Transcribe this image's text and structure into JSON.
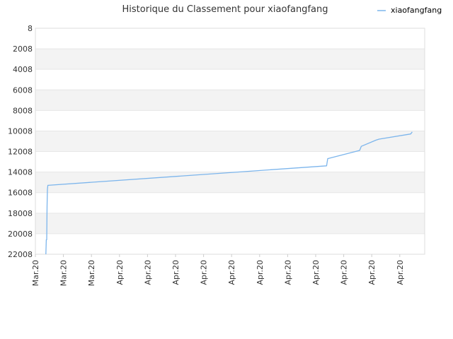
{
  "chart_data": {
    "type": "line",
    "title": "Historique du Classement pour xiaofangfang",
    "xlabel": "",
    "ylabel": "",
    "y_axis": {
      "inverted": true,
      "ylim": [
        8,
        22008
      ],
      "tick_labels": [
        "8",
        "2008",
        "4008",
        "6008",
        "8008",
        "10008",
        "12008",
        "14008",
        "16008",
        "18008",
        "20008",
        "22008"
      ],
      "tick_values": [
        8,
        2008,
        4008,
        6008,
        8008,
        10008,
        12008,
        14008,
        16008,
        18008,
        20008,
        22008
      ]
    },
    "x_axis": {
      "range": [
        0,
        100
      ],
      "tick_labels": [
        "Mar.20",
        "Mar.20",
        "Mar.20",
        "Apr.20",
        "Apr.20",
        "Apr.20",
        "Apr.20",
        "Apr.20",
        "Apr.20",
        "Apr.20",
        "Apr.20",
        "Apr.20",
        "Apr.20",
        "Apr.20"
      ],
      "tick_positions": [
        0,
        7.2,
        14.4,
        21.6,
        28.8,
        36.0,
        43.2,
        50.4,
        57.6,
        64.8,
        72.0,
        79.2,
        86.4,
        93.6
      ]
    },
    "grid": "horizontal-bands",
    "legend": {
      "position": "top-right",
      "entries": [
        "xiaofangfang"
      ]
    },
    "series": [
      {
        "name": "xiaofangfang",
        "color": "#7cb5ec",
        "x": [
          2.7,
          2.8,
          2.9,
          3.0,
          3.1,
          3.2,
          3.3,
          74.8,
          75.1,
          83.3,
          83.7,
          87.5,
          88.3,
          96.4,
          96.8
        ],
        "y": [
          22008,
          20600,
          20600,
          17300,
          15700,
          15300,
          15300,
          13400,
          12700,
          11900,
          11500,
          10900,
          10800,
          10300,
          10100
        ]
      }
    ]
  }
}
